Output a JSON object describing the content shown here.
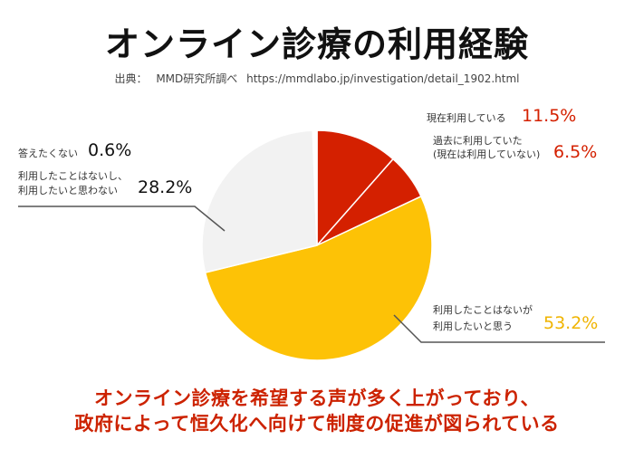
{
  "header": {
    "title": "オンライン診療の利用経験",
    "source_label": "出典：",
    "source_org": "MMD研究所調べ",
    "source_url": "https://mmdlabo.jp/investigation/detail_1902.html"
  },
  "colors": {
    "current": "#d42000",
    "past": "#d42000",
    "want": "#fdc206",
    "notwant": "#f2f2f2",
    "noanswer": "#ffffff",
    "leader": "#555555",
    "value_red": "#d42000",
    "value_yellow": "#f0b400",
    "value_black": "#111111"
  },
  "labels": {
    "current": "現在利用している",
    "past_line1": "過去に利用していた",
    "past_line2": "(現在は利用していない)",
    "want_line1": "利用したことはないが",
    "want_line2": "利用したいと思う",
    "notwant_line1": "利用したことはないし、",
    "notwant_line2": "利用したいと思わない",
    "noanswer": "答えたくない"
  },
  "value_labels": {
    "current": "11.5%",
    "past": "6.5%",
    "want": "53.2%",
    "notwant": "28.2%",
    "noanswer": "0.6%"
  },
  "footer": {
    "line1": "オンライン診療を希望する声が多く上がっており、",
    "line2": "政府によって恒久化へ向けて制度の促進が図られている"
  },
  "chart_data": {
    "type": "pie",
    "title": "オンライン診療の利用経験",
    "start_angle": "12 o'clock",
    "direction": "clockwise",
    "slices": [
      {
        "label": "現在利用している",
        "value": 11.5,
        "color": "#d42000"
      },
      {
        "label": "過去に利用していた(現在は利用していない)",
        "value": 6.5,
        "color": "#d42000"
      },
      {
        "label": "利用したことはないが利用したいと思う",
        "value": 53.2,
        "color": "#fdc206"
      },
      {
        "label": "利用したことはないし、利用したいと思わない",
        "value": 28.2,
        "color": "#f2f2f2"
      },
      {
        "label": "答えたくない",
        "value": 0.6,
        "color": "#ffffff"
      }
    ]
  }
}
